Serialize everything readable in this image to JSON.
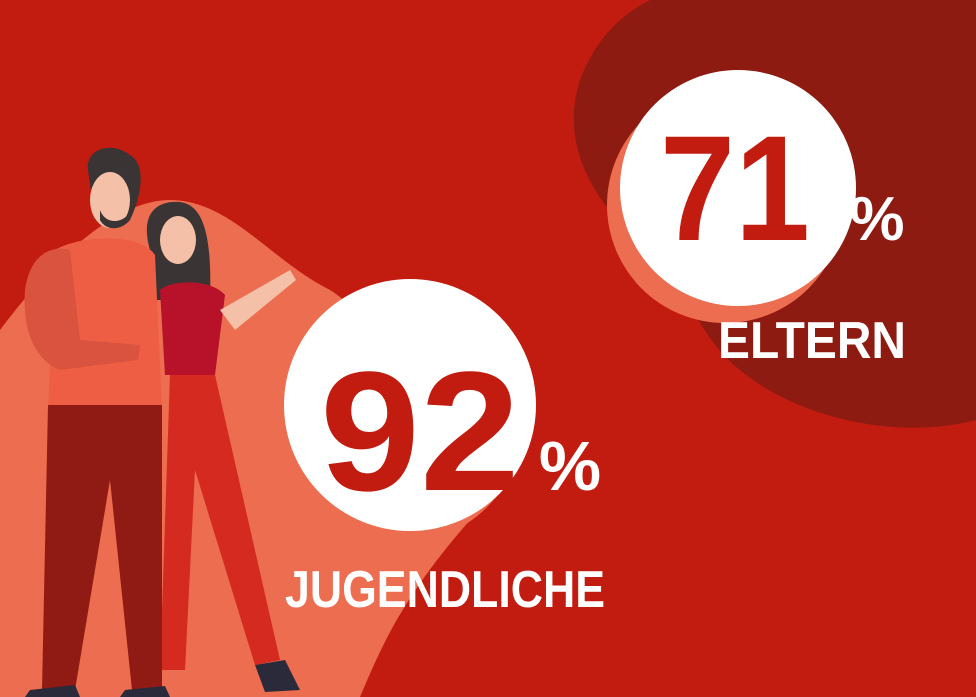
{
  "stats": [
    {
      "number": "71",
      "unit": "%",
      "label": "ELTERN"
    },
    {
      "number": "92",
      "unit": "%",
      "label": "JUGENDLICHE"
    }
  ]
}
